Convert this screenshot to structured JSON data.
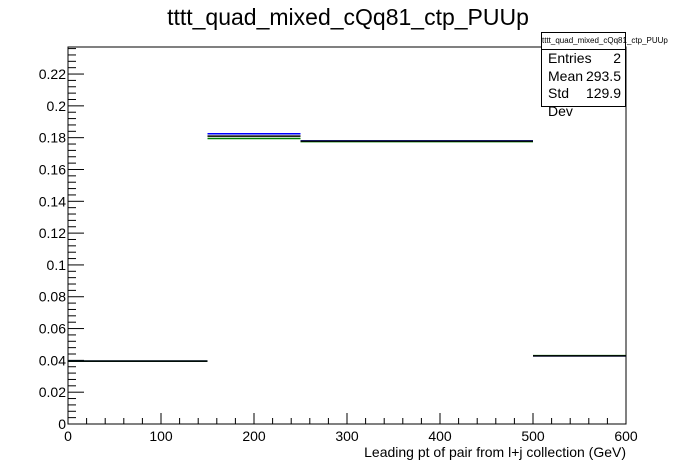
{
  "chart_data": {
    "type": "histogram",
    "title": "tttt_quad_mixed_cQq81_ctp_PUUp",
    "xlabel": "Leading pt of pair from l+j collection (GeV)",
    "ylabel": "",
    "xlim": [
      0,
      600
    ],
    "ylim": [
      0,
      0.237
    ],
    "x_ticks": [
      0,
      100,
      200,
      300,
      400,
      500,
      600
    ],
    "y_ticks": [
      0,
      0.02,
      0.04,
      0.06,
      0.08,
      0.1,
      0.12,
      0.14,
      0.16,
      0.18,
      0.2,
      0.22
    ],
    "x_tick_labels": [
      "0",
      "100",
      "200",
      "300",
      "400",
      "500",
      "600"
    ],
    "y_tick_labels": [
      "0",
      "0.02",
      "0.04",
      "0.06",
      "0.08",
      "0.1",
      "0.12",
      "0.14",
      "0.16",
      "0.18",
      "0.2",
      "0.22"
    ],
    "grid": false,
    "legend": "none",
    "series": [
      {
        "color": "#0000ff",
        "bins": [
          [
            0,
            150,
            0.0395
          ],
          [
            150,
            250,
            0.1825
          ],
          [
            250,
            500,
            0.178
          ],
          [
            500,
            600,
            0.0428
          ]
        ]
      },
      {
        "color": "#008000",
        "bins": [
          [
            0,
            150,
            0.0395
          ],
          [
            150,
            250,
            0.1795
          ],
          [
            250,
            500,
            0.1775
          ],
          [
            500,
            600,
            0.043
          ]
        ]
      },
      {
        "color": "#000000",
        "bins": [
          [
            0,
            150,
            0.0395
          ],
          [
            150,
            250,
            0.181
          ],
          [
            250,
            500,
            0.1778
          ],
          [
            500,
            600,
            0.0428
          ]
        ]
      }
    ],
    "stats_box": {
      "name": "tttt_quad_mixed_cQq81_ctp_PUUp",
      "rows": [
        {
          "label": "Entries",
          "value": "2"
        },
        {
          "label": "Mean",
          "value": "293.5"
        },
        {
          "label": "Std Dev",
          "value": "129.9"
        }
      ]
    }
  }
}
